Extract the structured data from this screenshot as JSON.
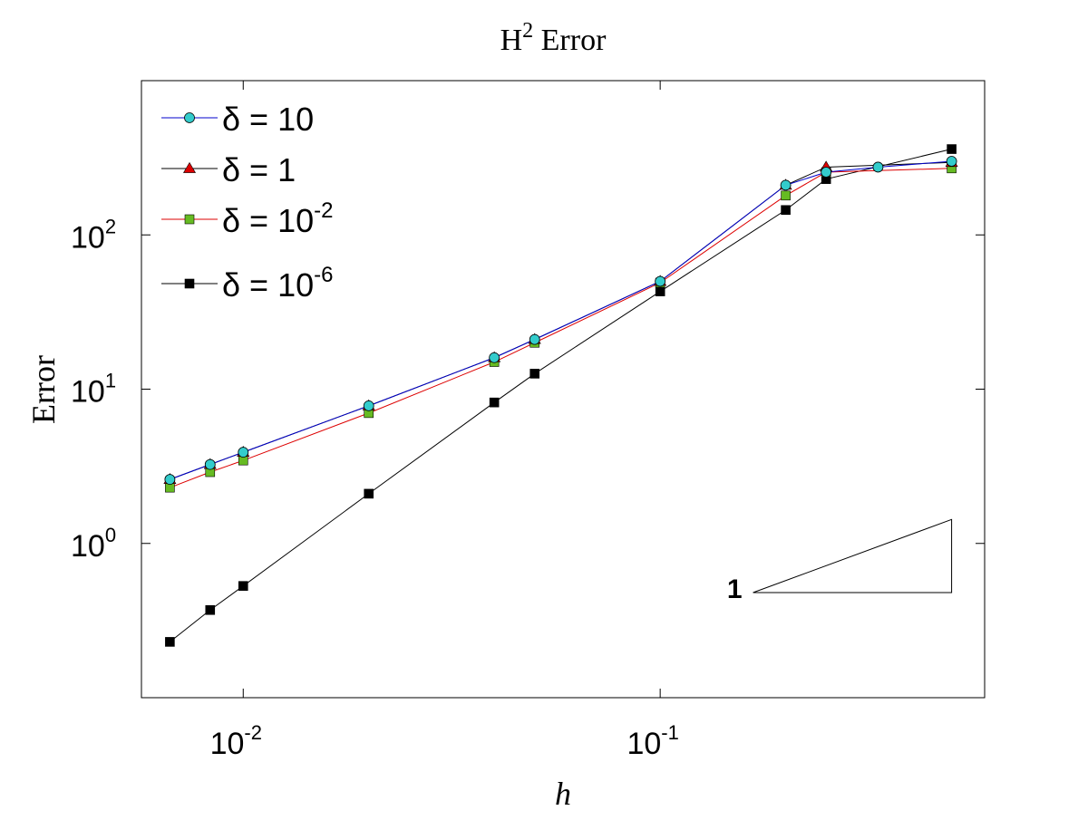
{
  "chart_data": {
    "type": "line",
    "title": {
      "base": "H",
      "superscript": "2",
      "rest": " Error"
    },
    "xlabel": "h",
    "ylabel": "Error",
    "x_scale": "log",
    "y_scale": "log",
    "xlim": [
      0.0057,
      0.6
    ],
    "ylim": [
      0.1,
      1000
    ],
    "x_ticks": [
      {
        "base": "10",
        "exp": "-2",
        "value": 0.01
      },
      {
        "base": "10",
        "exp": "-1",
        "value": 0.1
      }
    ],
    "y_ticks": [
      {
        "base": "10",
        "exp": "0",
        "value": 1
      },
      {
        "base": "10",
        "exp": "1",
        "value": 10
      },
      {
        "base": "10",
        "exp": "2",
        "value": 100
      }
    ],
    "grid": false,
    "legend_position": "top-left",
    "series": [
      {
        "name": {
          "prefix": "δ = ",
          "base": "10",
          "exp": ""
        },
        "line_color": "#0000cc",
        "marker": "circle",
        "marker_color": "#33cccc",
        "x": [
          0.00667,
          0.00833,
          0.01,
          0.02,
          0.04,
          0.05,
          0.1,
          0.2,
          0.25,
          0.333,
          0.5
        ],
        "y": [
          2.6,
          3.25,
          3.9,
          7.8,
          16,
          21,
          50,
          210,
          255,
          275,
          300
        ]
      },
      {
        "name": {
          "prefix": "δ = ",
          "base": "1",
          "exp": ""
        },
        "line_color": "#000000",
        "marker": "triangle",
        "marker_color": "#dd0000",
        "x": [
          0.00667,
          0.00833,
          0.01,
          0.02,
          0.04,
          0.05,
          0.1,
          0.2,
          0.25,
          0.5
        ],
        "y": [
          2.6,
          3.25,
          3.9,
          7.8,
          16,
          21,
          50,
          210,
          275,
          295
        ]
      },
      {
        "name": {
          "prefix": "δ = ",
          "base": "10",
          "exp": "-2"
        },
        "line_color": "#dd0000",
        "marker": "square",
        "marker_color": "#66bb22",
        "x": [
          0.00667,
          0.00833,
          0.01,
          0.02,
          0.04,
          0.05,
          0.1,
          0.2,
          0.25,
          0.5
        ],
        "y": [
          2.3,
          2.9,
          3.45,
          7,
          15,
          20,
          49,
          180,
          255,
          270
        ]
      },
      {
        "name": {
          "prefix": "δ = ",
          "base": "10",
          "exp": "-6"
        },
        "line_color": "#000000",
        "marker": "square",
        "marker_color": "#000000",
        "x": [
          0.00667,
          0.00833,
          0.01,
          0.02,
          0.04,
          0.05,
          0.1,
          0.2,
          0.25,
          0.5
        ],
        "y": [
          0.23,
          0.37,
          0.53,
          2.1,
          8.2,
          12.6,
          43,
          145,
          230,
          360
        ]
      }
    ],
    "annotations": [
      {
        "type": "slope_triangle",
        "label": "1",
        "x": [
          0.167,
          0.5
        ],
        "y": [
          0.48,
          1.43
        ]
      }
    ]
  }
}
